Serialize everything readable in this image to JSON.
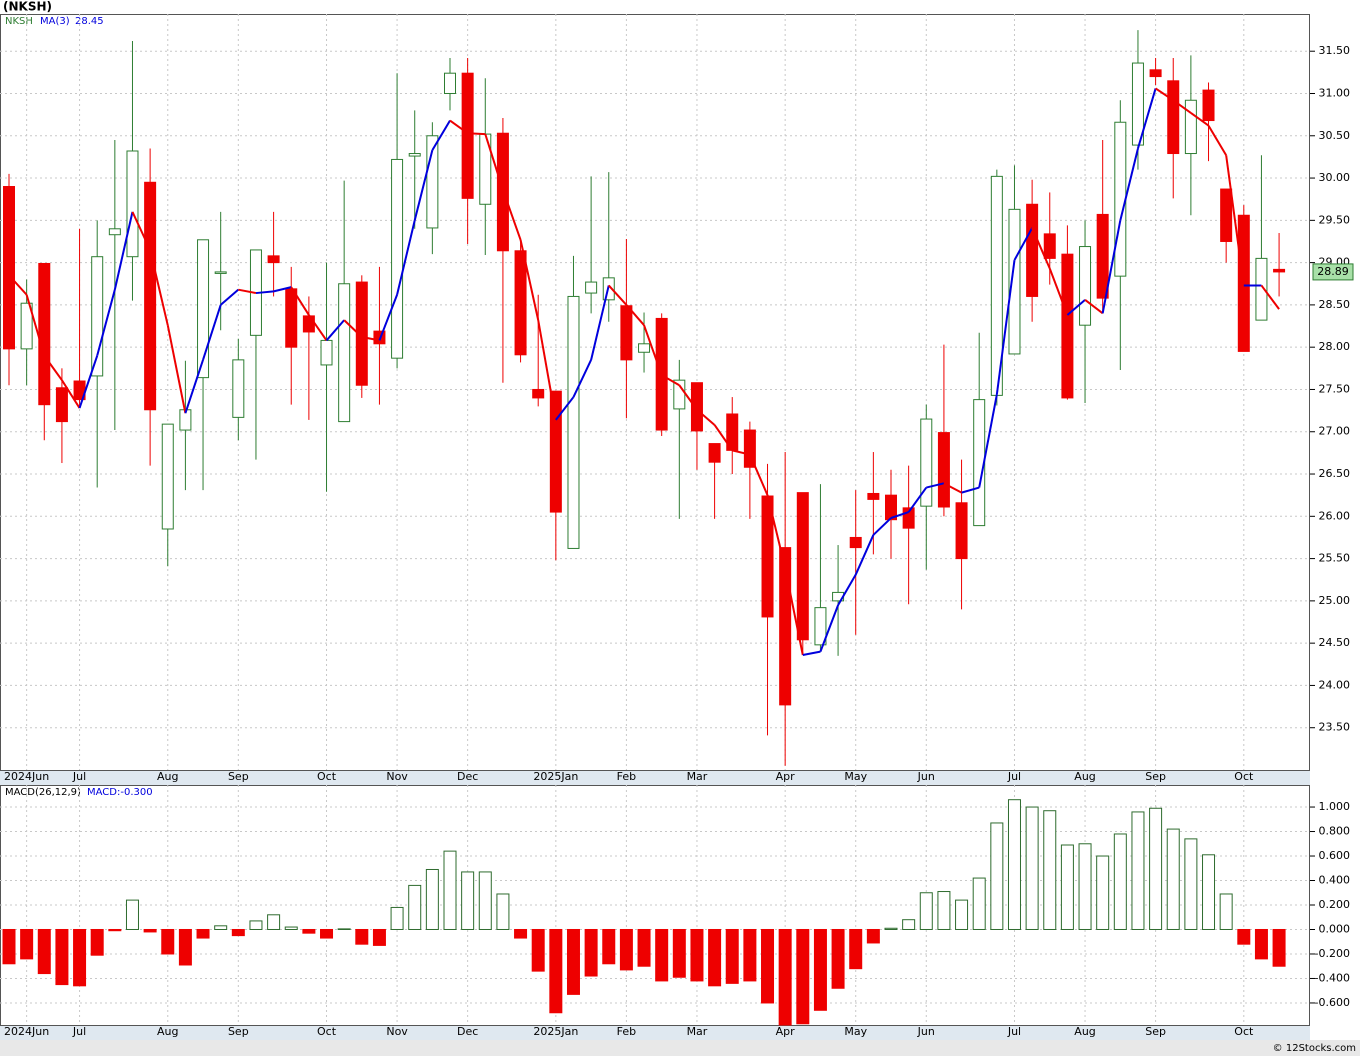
{
  "header": {
    "title": "(NKSH)"
  },
  "footer": "© 12Stocks.com",
  "chart_data": [
    {
      "type": "candlestick",
      "name": "NKSH",
      "categories": [
        null,
        "2024Jun",
        null,
        null,
        "Jul",
        null,
        null,
        null,
        null,
        "Aug",
        null,
        null,
        null,
        "Sep",
        null,
        null,
        null,
        null,
        "Oct",
        null,
        null,
        null,
        "Nov",
        null,
        null,
        null,
        "Dec",
        null,
        null,
        null,
        null,
        "2025Jan",
        null,
        null,
        null,
        "Feb",
        null,
        null,
        null,
        "Mar",
        null,
        null,
        null,
        null,
        "Apr",
        null,
        null,
        null,
        "May",
        null,
        null,
        null,
        "Jun",
        null,
        null,
        null,
        null,
        "Jul",
        null,
        null,
        null,
        "Aug",
        null,
        null,
        null,
        "Sep",
        null,
        null,
        null,
        null,
        "Oct",
        null,
        null
      ],
      "open": [
        29.9,
        27.98,
        28.99,
        27.52,
        27.6,
        27.66,
        29.33,
        29.07,
        29.95,
        25.85,
        27.02,
        27.64,
        28.88,
        27.17,
        28.14,
        29.08,
        28.69,
        28.37,
        27.79,
        27.12,
        28.77,
        28.19,
        27.87,
        30.26,
        29.41,
        31.0,
        31.24,
        29.69,
        30.53,
        29.14,
        27.5,
        27.48,
        25.62,
        28.64,
        28.56,
        28.49,
        27.94,
        28.34,
        27.27,
        27.58,
        26.86,
        27.21,
        27.02,
        26.24,
        25.63,
        26.28,
        24.48,
        25.0,
        25.75,
        26.27,
        26.25,
        26.1,
        26.12,
        26.99,
        26.16,
        25.89,
        27.43,
        27.92,
        29.69,
        29.34,
        29.1,
        28.26,
        29.57,
        28.84,
        30.39,
        31.28,
        31.15,
        30.29,
        31.04,
        29.87,
        29.56,
        28.32,
        28.92
      ],
      "high": [
        30.05,
        28.8,
        28.99,
        27.75,
        29.4,
        29.5,
        30.45,
        31.62,
        30.35,
        27.09,
        27.84,
        29.27,
        29.6,
        28.1,
        29.15,
        29.6,
        28.95,
        28.6,
        29.0,
        29.97,
        28.85,
        28.95,
        31.24,
        30.8,
        30.66,
        31.42,
        31.42,
        31.18,
        30.71,
        29.28,
        28.62,
        27.48,
        29.08,
        30.02,
        30.07,
        29.28,
        28.41,
        28.4,
        27.85,
        27.58,
        26.86,
        27.41,
        27.12,
        26.62,
        26.76,
        26.28,
        26.38,
        25.66,
        26.31,
        26.76,
        26.55,
        26.6,
        27.32,
        28.03,
        26.67,
        28.17,
        30.1,
        30.15,
        29.98,
        29.83,
        29.44,
        29.5,
        30.45,
        30.92,
        31.75,
        31.42,
        31.42,
        31.45,
        31.13,
        29.87,
        29.68,
        30.27,
        29.35
      ],
      "low": [
        27.55,
        27.55,
        26.9,
        26.63,
        27.3,
        26.34,
        27.02,
        28.55,
        26.6,
        25.41,
        26.31,
        26.31,
        28.2,
        26.9,
        26.67,
        28.6,
        27.32,
        27.14,
        26.29,
        27.12,
        27.4,
        27.32,
        27.75,
        29.4,
        29.1,
        30.8,
        29.22,
        29.09,
        27.58,
        27.82,
        27.3,
        25.48,
        25.62,
        28.4,
        28.3,
        27.16,
        27.7,
        26.95,
        25.97,
        26.55,
        25.97,
        26.5,
        25.97,
        23.41,
        23.05,
        24.36,
        24.4,
        24.35,
        24.6,
        25.55,
        25.5,
        24.96,
        25.37,
        26.0,
        24.9,
        25.89,
        27.31,
        27.92,
        28.3,
        28.74,
        27.38,
        27.34,
        28.4,
        27.73,
        30.1,
        31.1,
        29.76,
        29.56,
        30.2,
        29.0,
        27.95,
        28.32,
        28.6
      ],
      "close": [
        27.98,
        28.52,
        27.32,
        27.12,
        27.38,
        29.07,
        29.4,
        30.32,
        27.26,
        27.09,
        27.26,
        29.27,
        28.89,
        27.85,
        29.15,
        29.0,
        28.0,
        28.18,
        28.08,
        28.75,
        27.55,
        28.04,
        30.22,
        30.29,
        30.5,
        31.24,
        29.76,
        30.52,
        29.14,
        27.91,
        27.4,
        26.05,
        28.6,
        28.77,
        28.82,
        27.85,
        28.04,
        27.02,
        27.61,
        27.01,
        26.64,
        26.78,
        26.58,
        24.81,
        23.77,
        24.54,
        24.92,
        25.1,
        25.63,
        26.2,
        25.96,
        25.86,
        27.15,
        26.11,
        25.5,
        27.38,
        30.02,
        29.63,
        28.6,
        29.05,
        27.4,
        29.19,
        28.58,
        30.66,
        31.36,
        31.2,
        30.29,
        30.92,
        30.68,
        29.25,
        27.95,
        29.05,
        28.89
      ],
      "up_color": "#2e7d32",
      "down_color": "#ee0000",
      "ma": {
        "name": "MA(3)",
        "up_color": "#0000dd",
        "down_color": "#ee0000",
        "values": [
          28.85,
          28.62,
          27.9,
          27.61,
          27.28,
          27.9,
          28.68,
          29.6,
          29.15,
          28.26,
          27.22,
          27.85,
          28.5,
          28.68,
          28.64,
          28.66,
          28.71,
          28.38,
          28.08,
          28.32,
          28.12,
          28.08,
          28.62,
          29.5,
          30.33,
          30.68,
          30.53,
          30.52,
          29.86,
          29.27,
          28.32,
          27.14,
          27.41,
          27.85,
          28.73,
          28.5,
          28.26,
          27.67,
          27.55,
          27.26,
          27.08,
          26.78,
          26.73,
          26.25,
          25.39,
          24.36,
          24.4,
          24.95,
          25.31,
          25.78,
          25.98,
          26.05,
          26.34,
          26.39,
          26.28,
          26.34,
          27.44,
          29.03,
          29.41,
          28.93,
          28.38,
          28.56,
          28.4,
          29.5,
          30.35,
          31.06,
          30.92,
          30.77,
          30.62,
          30.27,
          28.73,
          28.73,
          28.45
        ]
      },
      "ylim": [
        23.0,
        31.94
      ],
      "yticks": [
        {
          "value": 23.5,
          "label": "23.50"
        },
        {
          "value": 24,
          "label": "24.00"
        },
        {
          "value": 24.5,
          "label": "24.50"
        },
        {
          "value": 25,
          "label": "25.00"
        },
        {
          "value": 25.5,
          "label": "25.50"
        },
        {
          "value": 26,
          "label": "26.00"
        },
        {
          "value": 26.5,
          "label": "26.50"
        },
        {
          "value": 27,
          "label": "27.00"
        },
        {
          "value": 27.5,
          "label": "27.50"
        },
        {
          "value": 28,
          "label": "28.00"
        },
        {
          "value": 28.5,
          "label": "28.50"
        },
        {
          "value": 29,
          "label": "29.00"
        },
        {
          "value": 29.5,
          "label": "29.50"
        },
        {
          "value": 30,
          "label": "30.00"
        },
        {
          "value": 30.5,
          "label": "30.50"
        },
        {
          "value": 31,
          "label": "31.00"
        },
        {
          "value": 31.5,
          "label": "31.50"
        }
      ],
      "grid": true
    },
    {
      "type": "bar",
      "name": "MACD(26,12,9)",
      "status": "MACD:-0.300",
      "categories": [
        null,
        "2024Jun",
        null,
        null,
        "Jul",
        null,
        null,
        null,
        null,
        "Aug",
        null,
        null,
        null,
        "Sep",
        null,
        null,
        null,
        null,
        "Oct",
        null,
        null,
        null,
        "Nov",
        null,
        null,
        null,
        "Dec",
        null,
        null,
        null,
        null,
        "2025Jan",
        null,
        null,
        null,
        "Feb",
        null,
        null,
        null,
        "Mar",
        null,
        null,
        null,
        null,
        "Apr",
        null,
        null,
        null,
        "May",
        null,
        null,
        null,
        "Jun",
        null,
        null,
        null,
        null,
        "Jul",
        null,
        null,
        null,
        "Aug",
        null,
        null,
        null,
        "Sep",
        null,
        null,
        null,
        null,
        "Oct",
        null,
        null
      ],
      "values": [
        -0.28,
        -0.24,
        -0.36,
        -0.45,
        -0.46,
        -0.21,
        -0.01,
        0.24,
        -0.02,
        -0.2,
        -0.29,
        -0.07,
        0.03,
        -0.05,
        0.07,
        0.12,
        0.02,
        -0.03,
        -0.07,
        0.005,
        -0.12,
        -0.13,
        0.18,
        0.36,
        0.49,
        0.64,
        0.47,
        0.47,
        0.29,
        -0.07,
        -0.34,
        -0.68,
        -0.53,
        -0.38,
        -0.28,
        -0.33,
        -0.3,
        -0.42,
        -0.39,
        -0.42,
        -0.46,
        -0.44,
        -0.42,
        -0.6,
        -0.78,
        -0.77,
        -0.66,
        -0.48,
        -0.32,
        -0.11,
        0.01,
        0.08,
        0.3,
        0.31,
        0.24,
        0.42,
        0.87,
        1.06,
        1.0,
        0.97,
        0.69,
        0.7,
        0.6,
        0.78,
        0.96,
        0.99,
        0.82,
        0.74,
        0.61,
        0.29,
        -0.12,
        -0.24,
        -0.3
      ],
      "up_color": "#2e6b2e",
      "down_color": "#ee0000",
      "ylim": [
        -0.78,
        1.18
      ],
      "yticks": [
        {
          "value": -0.6,
          "label": "-0.600"
        },
        {
          "value": -0.4,
          "label": "-0.400"
        },
        {
          "value": -0.2,
          "label": "-0.200"
        },
        {
          "value": 0,
          "label": "0.000"
        },
        {
          "value": 0.2,
          "label": "0.200"
        },
        {
          "value": 0.4,
          "label": "0.400"
        },
        {
          "value": 0.6,
          "label": "0.600"
        },
        {
          "value": 0.8,
          "label": "0.800"
        },
        {
          "value": 1,
          "label": "1.000"
        }
      ],
      "grid": true
    }
  ]
}
